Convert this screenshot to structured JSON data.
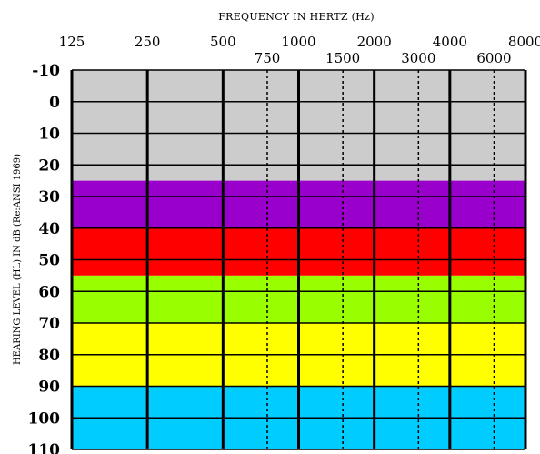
{
  "chart_data": {
    "type": "heatmap",
    "title": "",
    "xlabel": "FREQUENCY IN HERTZ (Hz)",
    "ylabel": "HEARING LEVEL (HL) IN dB (Re:ANSI 1969)",
    "x_scale": "log2",
    "x_ticks_primary": [
      125,
      250,
      500,
      1000,
      2000,
      4000,
      8000
    ],
    "x_tick_labels_primary": [
      "125",
      "250",
      "500",
      "1000",
      "2000",
      "4000",
      "8000"
    ],
    "x_ticks_secondary": [
      750,
      1500,
      3000,
      6000
    ],
    "x_tick_labels_secondary": [
      "750",
      "1500",
      "3000",
      "6000"
    ],
    "y_ticks": [
      -10,
      0,
      10,
      20,
      30,
      40,
      50,
      60,
      70,
      80,
      90,
      100,
      110
    ],
    "y_tick_labels": [
      "-10",
      "0",
      "10",
      "20",
      "30",
      "40",
      "50",
      "60",
      "70",
      "80",
      "90",
      "100",
      "110"
    ],
    "ylim": [
      -10,
      110
    ],
    "y_inverted": true,
    "grid": true,
    "bands": [
      {
        "from": -10,
        "to": 25,
        "color": "#cccccc"
      },
      {
        "from": 25,
        "to": 40,
        "color": "#9900cc"
      },
      {
        "from": 40,
        "to": 55,
        "color": "#ff0000"
      },
      {
        "from": 55,
        "to": 70,
        "color": "#99ff00"
      },
      {
        "from": 70,
        "to": 90,
        "color": "#ffff00"
      },
      {
        "from": 90,
        "to": 110,
        "color": "#00ccff"
      }
    ]
  }
}
